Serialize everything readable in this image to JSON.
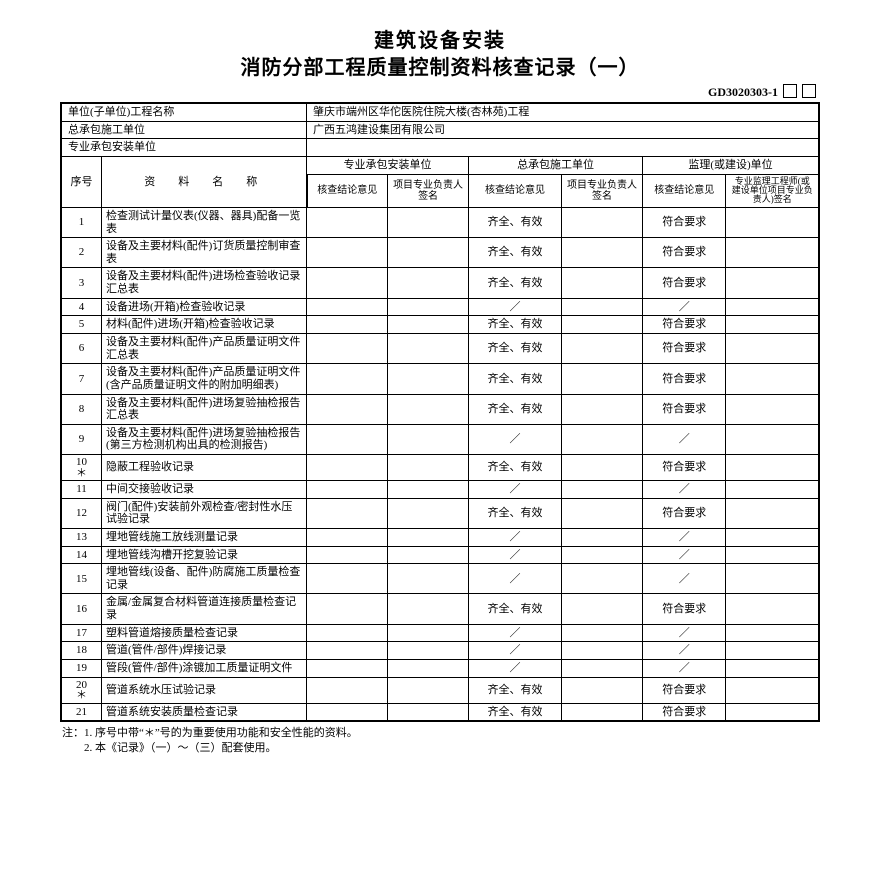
{
  "title_line1": "建筑设备安装",
  "title_line2": "消防分部工程质量控制资料核查记录（一）",
  "form_code_prefix": "GD3020303-1",
  "header_rows": {
    "r1_label": "单位(子单位)工程名称",
    "r1_value": "肇庆市端州区华佗医院住院大楼(杏林苑)工程",
    "r2_label": "总承包施工单位",
    "r2_value": "广西五鸿建设集团有限公司",
    "r3_label": "专业承包安装单位",
    "r3_value": ""
  },
  "group_headers": {
    "seq": "序号",
    "name": "资　料　名　称",
    "grp1": "专业承包安装单位",
    "grp2": "总承包施工单位",
    "grp3": "监理(或建设)单位",
    "sub_a": "核查结论意见",
    "sub_b": "项目专业负责人签名",
    "sub_c": "核查结论意见",
    "sub_d": "项目专业负责人签名",
    "sub_e": "核查结论意见",
    "sub_f": "专业监理工程师(或建设单位项目专业负责人)签名"
  },
  "rows": [
    {
      "n": "1",
      "name": "检查测试计量仪表(仪器、器具)配备一览表",
      "c": "齐全、有效",
      "e": "符合要求"
    },
    {
      "n": "2",
      "name": "设备及主要材料(配件)订货质量控制审查表",
      "c": "齐全、有效",
      "e": "符合要求"
    },
    {
      "n": "3",
      "name": "设备及主要材料(配件)进场检查验收记录汇总表",
      "c": "齐全、有效",
      "e": "符合要求"
    },
    {
      "n": "4",
      "name": "设备进场(开箱)检查验收记录",
      "c": "／",
      "e": "／"
    },
    {
      "n": "5",
      "name": "材料(配件)进场(开箱)检查验收记录",
      "c": "齐全、有效",
      "e": "符合要求"
    },
    {
      "n": "6",
      "name": "设备及主要材料(配件)产品质量证明文件汇总表",
      "c": "齐全、有效",
      "e": "符合要求"
    },
    {
      "n": "7",
      "name": "设备及主要材料(配件)产品质量证明文件(含产品质量证明文件的附加明细表)",
      "c": "齐全、有效",
      "e": "符合要求"
    },
    {
      "n": "8",
      "name": "设备及主要材料(配件)进场复验抽检报告汇总表",
      "c": "齐全、有效",
      "e": "符合要求"
    },
    {
      "n": "9",
      "name": "设备及主要材料(配件)进场复验抽检报告(第三方检测机构出具的检测报告)",
      "c": "／",
      "e": "／"
    },
    {
      "n": "10*",
      "name": "隐蔽工程验收记录",
      "c": "齐全、有效",
      "e": "符合要求"
    },
    {
      "n": "11",
      "name": "中间交接验收记录",
      "c": "／",
      "e": "／"
    },
    {
      "n": "12",
      "name": "阀门(配件)安装前外观检查/密封性水压试验记录",
      "c": "齐全、有效",
      "e": "符合要求"
    },
    {
      "n": "13",
      "name": "埋地管线施工放线测量记录",
      "c": "／",
      "e": "／"
    },
    {
      "n": "14",
      "name": "埋地管线沟槽开挖复验记录",
      "c": "／",
      "e": "／"
    },
    {
      "n": "15",
      "name": "埋地管线(设备、配件)防腐施工质量检查记录",
      "c": "／",
      "e": "／"
    },
    {
      "n": "16",
      "name": "金属/金属复合材料管道连接质量检查记录",
      "c": "齐全、有效",
      "e": "符合要求"
    },
    {
      "n": "17",
      "name": "塑料管道熔接质量检查记录",
      "c": "／",
      "e": "／"
    },
    {
      "n": "18",
      "name": "管道(管件/部件)焊接记录",
      "c": "／",
      "e": "／"
    },
    {
      "n": "19",
      "name": "管段(管件/部件)涂镀加工质量证明文件",
      "c": "／",
      "e": "／"
    },
    {
      "n": "20*",
      "name": "管道系统水压试验记录",
      "c": "齐全、有效",
      "e": "符合要求"
    },
    {
      "n": "21",
      "name": "管道系统安装质量检查记录",
      "c": "齐全、有效",
      "e": "符合要求"
    }
  ],
  "footnote_l1": "注：1. 序号中带“＊”号的为重要使用功能和安全性能的资料。",
  "footnote_l2": "　　2. 本《记录》（一）～（三）配套使用。"
}
